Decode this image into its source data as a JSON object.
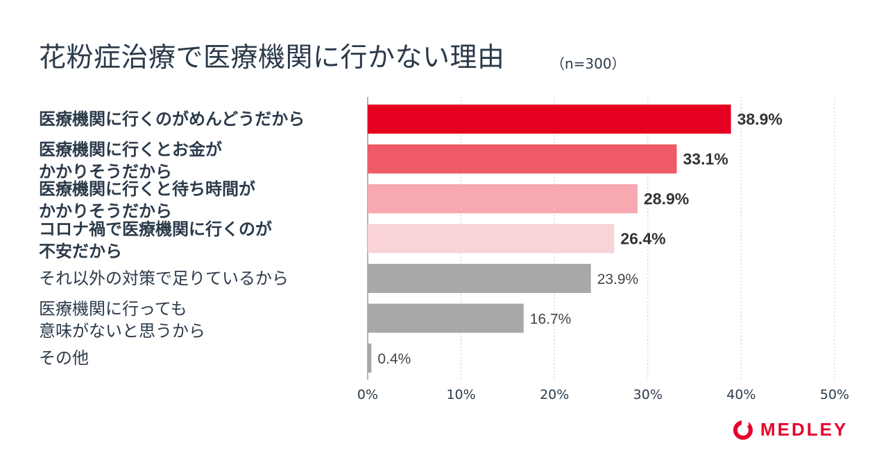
{
  "chart_data": {
    "type": "bar",
    "orientation": "horizontal",
    "title": "花粉症治療で医療機関に行かない理由",
    "subtitle": "（n=300）",
    "categories": [
      "医療機関に行くのがめんどうだから",
      "医療機関に行くとお金が\nかかりそうだから",
      "医療機関に行くと待ち時間が\nかかりそうだから",
      "コロナ禍で医療機関に行くのが\n不安だから",
      "それ以外の対策で足りているから",
      "医療機関に行っても\n意味がないと思うから",
      "その他"
    ],
    "values": [
      38.9,
      33.1,
      28.9,
      26.4,
      23.9,
      16.7,
      0.4
    ],
    "value_labels": [
      "38.9%",
      "33.1%",
      "28.9%",
      "26.4%",
      "23.9%",
      "16.7%",
      "0.4%"
    ],
    "highlighted": [
      true,
      true,
      true,
      true,
      false,
      false,
      false
    ],
    "bar_colors": [
      "#e60020",
      "#ee5a67",
      "#f7a8b0",
      "#f9d3d8",
      "#a8a8a8",
      "#a8a8a8",
      "#a8a8a8"
    ],
    "xlim": [
      0,
      50
    ],
    "x_ticks": [
      "0%",
      "10%",
      "20%",
      "30%",
      "40%",
      "50%"
    ],
    "grid": true,
    "xlabel": "",
    "ylabel": ""
  },
  "brand": {
    "name": "MEDLEY",
    "color": "#e6002d"
  }
}
